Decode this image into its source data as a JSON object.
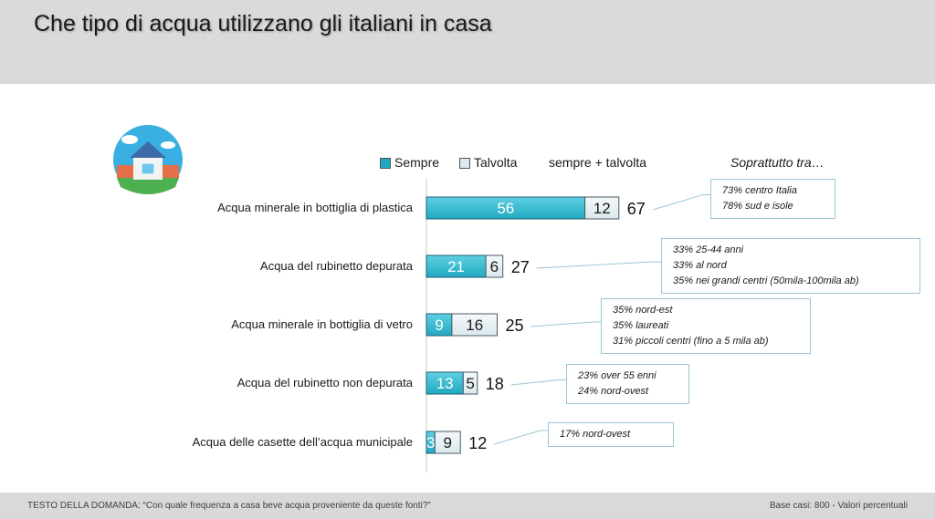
{
  "header": {
    "title": "Che tipo di acqua utilizzano gli italiani in casa"
  },
  "legend": {
    "sempre": "Sempre",
    "talvolta": "Talvolta",
    "total": "sempre + talvolta"
  },
  "notes_header": "Soprattutto tra…",
  "footer": {
    "question": "TESTO DELLA DOMANDA: “Con quale frequenza a casa beve acqua proveniente da queste fonti?”",
    "base": "Base casi: 800 - Valori percentuali"
  },
  "colors": {
    "sempre": "#1fa9c0",
    "talvolta": "#dbe8ee",
    "header_bg": "#dadada",
    "note_border": "#9cc6d6"
  },
  "icon": "house-icon",
  "chart_data": {
    "type": "bar",
    "orientation": "horizontal",
    "stacked": true,
    "categories": [
      "Acqua minerale in bottiglia di plastica",
      "Acqua del rubinetto depurata",
      "Acqua minerale in bottiglia di vetro",
      "Acqua del rubinetto non depurata",
      "Acqua delle casette dell’acqua municipale"
    ],
    "series": [
      {
        "name": "Sempre",
        "values": [
          56,
          21,
          9,
          13,
          3
        ]
      },
      {
        "name": "Talvolta",
        "values": [
          12,
          6,
          16,
          5,
          9
        ]
      }
    ],
    "totals_label": "sempre + talvolta",
    "totals": [
      67,
      27,
      25,
      18,
      12
    ],
    "notes": [
      [
        "73% centro Italia",
        "78% sud e isole"
      ],
      [
        "33% 25-44 anni",
        "33% al nord",
        "35% nei grandi centri (50mila-100mila ab)"
      ],
      [
        "35% nord-est",
        "35% laureati",
        "31% piccoli centri (fino a 5 mila ab)"
      ],
      [
        "23% over 55 enni",
        "24% nord-ovest"
      ],
      [
        "17% nord-ovest"
      ]
    ]
  }
}
